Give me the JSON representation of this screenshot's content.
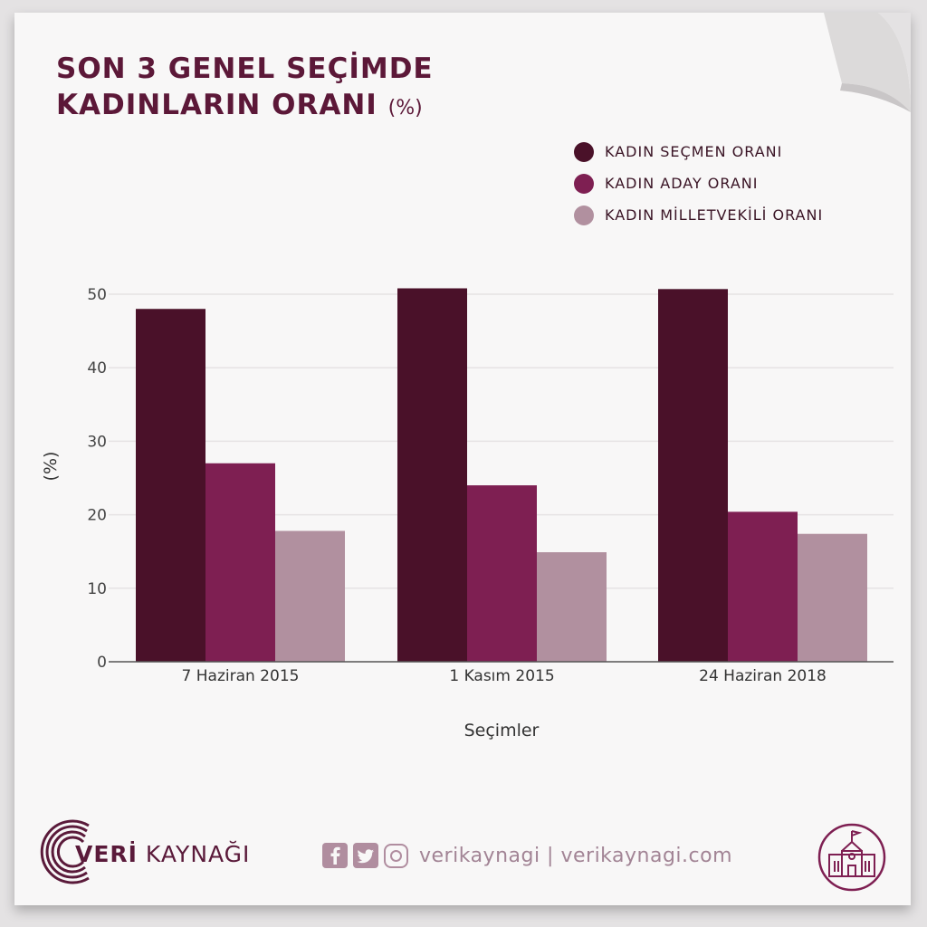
{
  "title": {
    "line1": "SON 3 GENEL SEÇİMDE",
    "line2": "KADINLARIN ORANI",
    "unit": "(%)"
  },
  "colors": {
    "voter": "#4a1129",
    "candidate": "#7e1f52",
    "mp": "#b1909f",
    "title": "#5c1838"
  },
  "brand": {
    "bold": "VERİ",
    "rest": " KAYNAĞI"
  },
  "social": {
    "handle": "verikaynagi | verikaynagi.com",
    "icons": [
      "facebook-icon",
      "twitter-icon",
      "instagram-icon"
    ]
  },
  "chart_data": {
    "type": "bar",
    "categories": [
      "7 Haziran 2015",
      "1 Kasım 2015",
      "24 Haziran 2018"
    ],
    "series": [
      {
        "name": "KADIN SEÇMEN ORANI",
        "values": [
          48.0,
          50.8,
          50.7
        ],
        "color": "#4a1129"
      },
      {
        "name": "KADIN ADAY ORANI",
        "values": [
          27.0,
          24.0,
          20.4
        ],
        "color": "#7e1f52"
      },
      {
        "name": "KADIN MİLLETVEKİLİ ORANI",
        "values": [
          17.8,
          14.9,
          17.4
        ],
        "color": "#b1909f"
      }
    ],
    "xlabel": "Seçimler",
    "ylabel": "(%)",
    "ylim": [
      0,
      52
    ],
    "yticks": [
      0,
      10,
      20,
      30,
      40,
      50
    ],
    "grid": true,
    "legend": "top-right"
  }
}
